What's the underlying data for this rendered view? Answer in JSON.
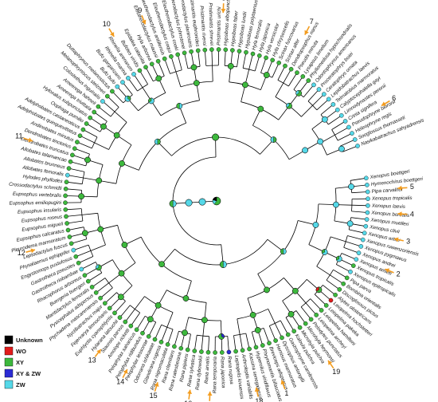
{
  "colors": {
    "Unknown": "#000000",
    "WO": "#e21b1b",
    "XY": "#3db83d",
    "XY & ZW": "#2b2bd4",
    "ZW": "#55d8e8",
    "arrow": "#f39c1e"
  },
  "legend": [
    {
      "label": "Unknown",
      "color": "#000000"
    },
    {
      "label": "WO",
      "color": "#e21b1b"
    },
    {
      "label": "XY",
      "color": "#3db83d"
    },
    {
      "label": "XY & ZW",
      "color": "#2b2bd4"
    },
    {
      "label": "ZW",
      "color": "#55d8e8"
    }
  ],
  "tips": [
    {
      "name": "Xenopus boettgeri",
      "state": "ZW"
    },
    {
      "name": "Hymenochirus boettgeri",
      "state": "ZW"
    },
    {
      "name": "Pipa carvalhoi",
      "state": "ZW"
    },
    {
      "name": "Xenopus tropicalis",
      "state": "ZW"
    },
    {
      "name": "Xenopus laevis",
      "state": "ZW"
    },
    {
      "name": "Xenopus borealis",
      "state": "ZW"
    },
    {
      "name": "Xenopus muelleri",
      "state": "ZW"
    },
    {
      "name": "Xenopus clivii",
      "state": "ZW"
    },
    {
      "name": "Xenopus wittei",
      "state": "ZW"
    },
    {
      "name": "Xenopus ruwenzoriensis",
      "state": "ZW"
    },
    {
      "name": "Xenopus pygmaeus",
      "state": "ZW"
    },
    {
      "name": "Xenopus andrei",
      "state": "ZW"
    },
    {
      "name": "Xenopus amieti",
      "state": "ZW"
    },
    {
      "name": "Xenopus tropicalis",
      "state": "XY"
    },
    {
      "name": "Xenopus epitropicalis",
      "state": "ZW"
    },
    {
      "name": "Pipa parva",
      "state": "XY"
    },
    {
      "name": "Bombina orientalis",
      "state": "XY"
    },
    {
      "name": "Discoglossus pictus",
      "state": "XY"
    },
    {
      "name": "Alytes obstetricans",
      "state": "XY"
    },
    {
      "name": "Leiopelma hochstetteri",
      "state": "WO"
    },
    {
      "name": "Leiopelma pakeka",
      "state": "XY"
    },
    {
      "name": "Leiopelma hamiltoni",
      "state": "XY"
    },
    {
      "name": "Leiopelma archeyi",
      "state": "XY"
    },
    {
      "name": "Pelodytes punctatus",
      "state": "XY"
    },
    {
      "name": "Microhyla heymonsi",
      "state": "XY"
    },
    {
      "name": "Microhyla pulchra",
      "state": "XY"
    },
    {
      "name": "Kaloula pulchra",
      "state": "XY"
    },
    {
      "name": "Gastrophryne carolinensis",
      "state": "XY"
    },
    {
      "name": "Dyscophus antongilii",
      "state": "XY"
    },
    {
      "name": "Hemisus marmoratus",
      "state": "XY"
    },
    {
      "name": "Breviceps adspersus",
      "state": "XY"
    },
    {
      "name": "Phrynomantis bifasciatus",
      "state": "XY"
    },
    {
      "name": "Hyperolius viridiflavus",
      "state": "XY"
    },
    {
      "name": "Kassina senegalensis",
      "state": "XY"
    },
    {
      "name": "Arthroleptis variabilis",
      "state": "XY"
    },
    {
      "name": "Leptopelis kivuensis",
      "state": "XY"
    },
    {
      "name": "Rana rugosa",
      "state": "XY & ZW"
    },
    {
      "name": "Rana japonica",
      "state": "XY"
    },
    {
      "name": "Rana temporaria",
      "state": "XY"
    },
    {
      "name": "Rana arvalis",
      "state": "XY"
    },
    {
      "name": "Rana dybowskii",
      "state": "XY"
    },
    {
      "name": "Rana sylvatica",
      "state": "XY"
    },
    {
      "name": "Rana pipiens",
      "state": "XY"
    },
    {
      "name": "Rana catesbeiana",
      "state": "XY"
    },
    {
      "name": "Rana clamitans",
      "state": "XY"
    },
    {
      "name": "Rana nigromaculata",
      "state": "XY"
    },
    {
      "name": "Glandirana rugosa",
      "state": "XY"
    },
    {
      "name": "Odorrana ishikawae",
      "state": "XY"
    },
    {
      "name": "Pelophylax lessonae",
      "state": "XY"
    },
    {
      "name": "Pelophylax ridibundus",
      "state": "XY"
    },
    {
      "name": "Pelophylax saharicus",
      "state": "XY"
    },
    {
      "name": "Amolops ricketti",
      "state": "XY"
    },
    {
      "name": "Staurois parvus",
      "state": "XY"
    },
    {
      "name": "Hylarana latouchii",
      "state": "XY"
    },
    {
      "name": "Euphlyctis cyanophlyctis",
      "state": "XY"
    },
    {
      "name": "Fejervarya limnocharis",
      "state": "XY"
    },
    {
      "name": "Nyctibatrachus major",
      "state": "XY"
    },
    {
      "name": "Ptychadena mascareniensis",
      "state": "XY"
    },
    {
      "name": "Pyxicephalus adspersus",
      "state": "XY"
    },
    {
      "name": "Mantidactylus femoralis",
      "state": "XY"
    },
    {
      "name": "Buergeria buergeri",
      "state": "XY"
    },
    {
      "name": "Rhacophorus arboreus",
      "state": "XY"
    },
    {
      "name": "Gastrotheca riobambae",
      "state": "ZW"
    },
    {
      "name": "Gastrotheca pseustes",
      "state": "XY"
    },
    {
      "name": "Engystomops pustulosus",
      "state": "XY"
    },
    {
      "name": "Physalaemus ephippifer",
      "state": "ZW"
    },
    {
      "name": "Leptodactylus fuscus",
      "state": "XY"
    },
    {
      "name": "Pleurodema marmoratum",
      "state": "XY"
    },
    {
      "name": "Eupsophus calcaratus",
      "state": "XY"
    },
    {
      "name": "Eupsophus migueli",
      "state": "XY"
    },
    {
      "name": "Eupsophus roseus",
      "state": "XY"
    },
    {
      "name": "Eupsophus insularis",
      "state": "XY"
    },
    {
      "name": "Eupsophus emiliopugini",
      "state": "XY"
    },
    {
      "name": "Eupsophus vertebralis",
      "state": "XY"
    },
    {
      "name": "Crossodactylus schmidti",
      "state": "XY"
    },
    {
      "name": "Hylodes phyllodes",
      "state": "XY"
    },
    {
      "name": "Allobates femoralis",
      "state": "ZW"
    },
    {
      "name": "Allobates brunneus",
      "state": "XY"
    },
    {
      "name": "Allobates talamancae",
      "state": "XY"
    },
    {
      "name": "Dendrobates truncatus",
      "state": "XY"
    },
    {
      "name": "Dendrobates tinctorius",
      "state": "XY"
    },
    {
      "name": "Andinobates minutus",
      "state": "XY"
    },
    {
      "name": "Adelphobates quinquevittatus",
      "state": "XY"
    },
    {
      "name": "Adelphobates castaneoticus",
      "state": "XY"
    },
    {
      "name": "Oophaga pumilio",
      "state": "XY"
    },
    {
      "name": "Hyloxalus subpunctatus",
      "state": "XY"
    },
    {
      "name": "Ameerega trivittata",
      "state": "XY"
    },
    {
      "name": "Ameerega hahneli",
      "state": "XY"
    },
    {
      "name": "Colostethus inguinalis",
      "state": "ZW"
    },
    {
      "name": "Melanophryniscus stelzneri",
      "state": "XY"
    },
    {
      "name": "Duttaphrynus melanostictus",
      "state": "XY"
    },
    {
      "name": "Bufo bufo",
      "state": "ZW"
    },
    {
      "name": "Bufo gargarizans",
      "state": "ZW"
    },
    {
      "name": "Rhinella marina",
      "state": "ZW"
    },
    {
      "name": "Rhinella arenarum",
      "state": "ZW"
    },
    {
      "name": "Bufotes viridis",
      "state": "XY"
    },
    {
      "name": "Epidalea calamita",
      "state": "XY"
    },
    {
      "name": "Hyla arborea",
      "state": "XY"
    },
    {
      "name": "Eleutherodactylus maussi",
      "state": "XY"
    },
    {
      "name": "Eleutherodactylus antillensis",
      "state": "XY"
    },
    {
      "name": "Eleutherodactylus coqui",
      "state": "XY"
    },
    {
      "name": "Eleutherodactylus cooki",
      "state": "XY"
    },
    {
      "name": "Eleutherodactylus johnstonei",
      "state": "XY"
    },
    {
      "name": "Eleutherodactylus planirostris",
      "state": "XY"
    },
    {
      "name": "Pristimantis euphronides",
      "state": "XY"
    },
    {
      "name": "Pristimantis riveroi",
      "state": "XY"
    },
    {
      "name": "Pristimantis shrevei",
      "state": "XY"
    },
    {
      "name": "Pristimantis urichi",
      "state": "XY"
    },
    {
      "name": "Hypsiboas albopunctatus",
      "state": "XY"
    },
    {
      "name": "Hypsiboas faber",
      "state": "XY"
    },
    {
      "name": "Hypsiboas lundii",
      "state": "XY"
    },
    {
      "name": "Hypsiboas polytaenius",
      "state": "XY"
    },
    {
      "name": "Hyla femoralis",
      "state": "XY"
    },
    {
      "name": "Hyla japonica",
      "state": "XY"
    },
    {
      "name": "Hyla versicolor",
      "state": "XY"
    },
    {
      "name": "Hyla chrysoscelis",
      "state": "XY"
    },
    {
      "name": "Scinax fuscovarius",
      "state": "XY"
    },
    {
      "name": "Scinax alter",
      "state": "XY"
    },
    {
      "name": "Dendropsophus nanus",
      "state": "XY"
    },
    {
      "name": "Pseudis minuta",
      "state": "XY"
    },
    {
      "name": "Lysapsus limellum",
      "state": "XY"
    },
    {
      "name": "Phyllomedusa hypochondrialis",
      "state": "XY"
    },
    {
      "name": "Odontophrynus americanus",
      "state": "ZW"
    },
    {
      "name": "Proceratophrys boiei",
      "state": "ZW"
    },
    {
      "name": "Ceratophrys ornata",
      "state": "ZW"
    },
    {
      "name": "Lepidobatrachus laevis",
      "state": "ZW"
    },
    {
      "name": "Telmatobius marmoratus",
      "state": "ZW"
    },
    {
      "name": "Calyptocephalella gayi",
      "state": "ZW"
    },
    {
      "name": "Limnodynastes peronii",
      "state": "ZW"
    },
    {
      "name": "Crinia signifera",
      "state": "ZW"
    },
    {
      "name": "Pseudophryne bibronii",
      "state": "ZW"
    },
    {
      "name": "Heleophryne regis",
      "state": "ZW"
    },
    {
      "name": "Sooglossus thomasseti",
      "state": "ZW"
    },
    {
      "name": "Nasikabatrachus sahyadrensis",
      "state": "ZW"
    }
  ],
  "callouts": [
    {
      "label": "1"
    },
    {
      "label": "2"
    },
    {
      "label": "3"
    },
    {
      "label": "4"
    },
    {
      "label": "5"
    },
    {
      "label": "6"
    },
    {
      "label": "7"
    },
    {
      "label": "8"
    },
    {
      "label": "9"
    },
    {
      "label": "10"
    },
    {
      "label": "11"
    },
    {
      "label": "12"
    },
    {
      "label": "13"
    },
    {
      "label": "14"
    },
    {
      "label": "15"
    },
    {
      "label": "16"
    },
    {
      "label": "17"
    },
    {
      "label": "18"
    },
    {
      "label": "19"
    }
  ]
}
